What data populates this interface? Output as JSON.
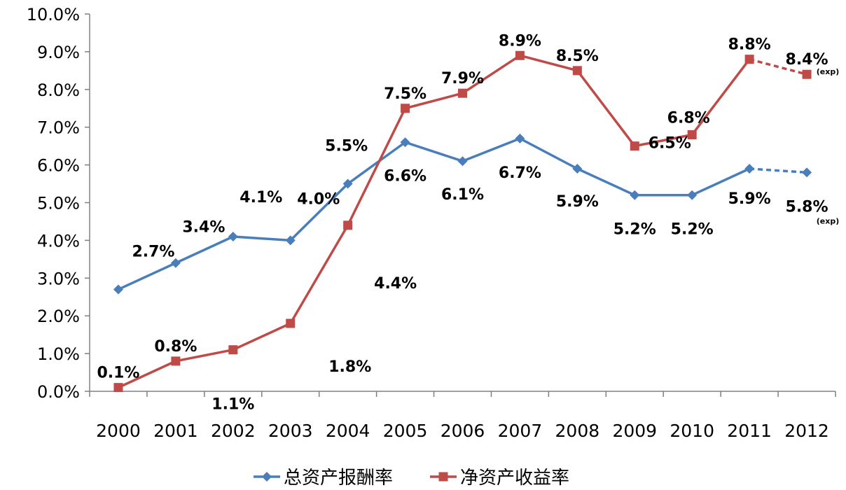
{
  "chart_data": {
    "type": "line",
    "categories": [
      "2000",
      "2001",
      "2002",
      "2003",
      "2004",
      "2005",
      "2006",
      "2007",
      "2008",
      "2009",
      "2010",
      "2011",
      "2012"
    ],
    "ylim": [
      0,
      10
    ],
    "yticks": [
      "0.0%",
      "1.0%",
      "2.0%",
      "3.0%",
      "4.0%",
      "5.0%",
      "6.0%",
      "7.0%",
      "8.0%",
      "9.0%",
      "10.0%"
    ],
    "grid": false,
    "legend_position": "bottom",
    "expected_note": "(exp)",
    "series": [
      {
        "name": "总资产报酬率",
        "color": "#4A7EBB",
        "marker": "diamond",
        "values": [
          2.7,
          3.4,
          4.1,
          4.0,
          5.5,
          6.6,
          6.1,
          6.7,
          5.9,
          5.2,
          5.2,
          5.9,
          5.8
        ],
        "labels": [
          "2.7%",
          "3.4%",
          "4.1%",
          "4.0%",
          "5.5%",
          "6.6%",
          "6.1%",
          "6.7%",
          "5.9%",
          "5.2%",
          "5.2%",
          "5.9%",
          "5.8%"
        ],
        "projected_from_index": 11
      },
      {
        "name": "净资产收益率",
        "color": "#BE4B48",
        "marker": "square",
        "values": [
          0.1,
          0.8,
          1.1,
          1.8,
          4.4,
          7.5,
          7.9,
          8.9,
          8.5,
          6.5,
          6.8,
          8.8,
          8.4
        ],
        "labels": [
          "0.1%",
          "0.8%",
          "1.1%",
          "1.8%",
          "4.4%",
          "7.5%",
          "7.9%",
          "8.9%",
          "8.5%",
          "6.5%",
          "6.8%",
          "8.8%",
          "8.4%"
        ],
        "projected_from_index": 11
      }
    ]
  }
}
